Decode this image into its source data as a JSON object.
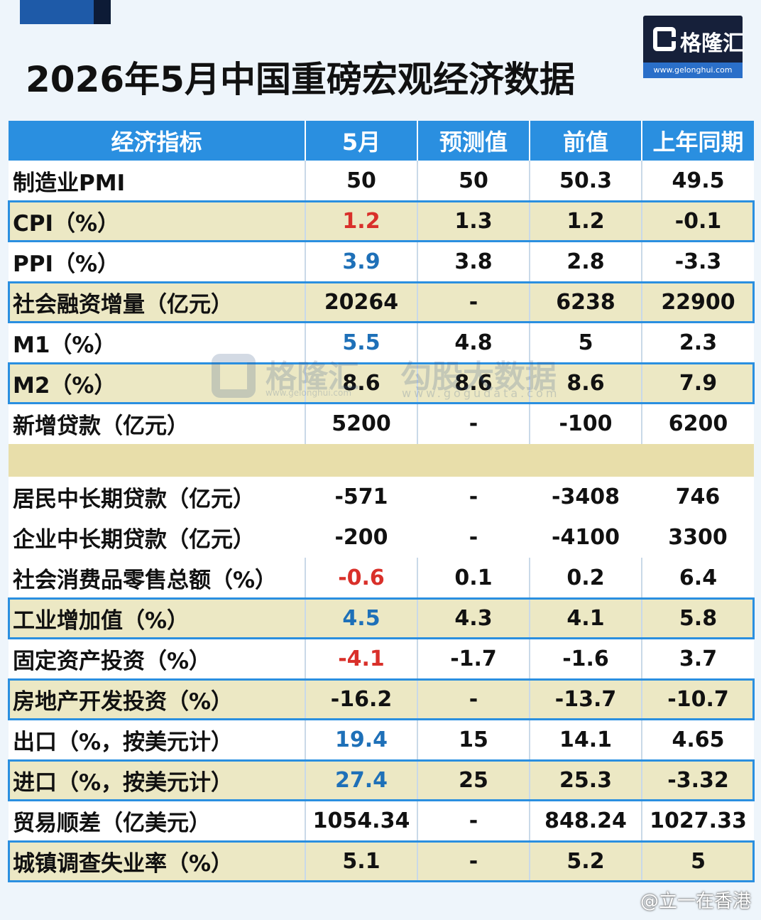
{
  "title": "2026年5月中国重磅宏观经济数据",
  "logo": {
    "name": "格隆汇",
    "url": "www.gelonghui.com"
  },
  "watermark": {
    "brand1": "格隆汇",
    "url1": "www.gelonghui.com",
    "brand2": "勾股大数据",
    "url2": "www.gogudata.com"
  },
  "table": {
    "headers": [
      "经济指标",
      "5月",
      "预测值",
      "前值",
      "上年同期"
    ],
    "rows": [
      {
        "label": "制造业PMI",
        "may": "50",
        "forecast": "50",
        "prev": "50.3",
        "last_year": "49.5",
        "style": "w",
        "may_color": ""
      },
      {
        "label": "CPI（%）",
        "may": "1.2",
        "forecast": "1.3",
        "prev": "1.2",
        "last_year": "-0.1",
        "style": "y",
        "may_color": "red"
      },
      {
        "label": "PPI（%）",
        "may": "3.9",
        "forecast": "3.8",
        "prev": "2.8",
        "last_year": "-3.3",
        "style": "w",
        "may_color": "blue"
      },
      {
        "label": "社会融资增量（亿元）",
        "may": "20264",
        "forecast": "-",
        "prev": "6238",
        "last_year": "22900",
        "style": "y",
        "may_color": ""
      },
      {
        "label": "M1（%）",
        "may": "5.5",
        "forecast": "4.8",
        "prev": "5",
        "last_year": "2.3",
        "style": "w",
        "may_color": "blue"
      },
      {
        "label": "M2（%）",
        "may": "8.6",
        "forecast": "8.6",
        "prev": "8.6",
        "last_year": "7.9",
        "style": "y",
        "may_color": ""
      },
      {
        "label": "新增贷款（亿元）",
        "may": "5200",
        "forecast": "-",
        "prev": "-100",
        "last_year": "6200",
        "style": "w",
        "may_color": ""
      },
      {
        "label": "",
        "may": "",
        "forecast": "",
        "prev": "",
        "last_year": "",
        "style": "spacer",
        "may_color": ""
      },
      {
        "label": "居民中长期贷款（亿元）",
        "may": "-571",
        "forecast": "-",
        "prev": "-3408",
        "last_year": "746",
        "style": "w nb",
        "may_color": ""
      },
      {
        "label": "企业中长期贷款（亿元）",
        "may": "-200",
        "forecast": "-",
        "prev": "-4100",
        "last_year": "3300",
        "style": "w nb",
        "may_color": ""
      },
      {
        "label": "社会消费品零售总额（%）",
        "may": "-0.6",
        "forecast": "0.1",
        "prev": "0.2",
        "last_year": "6.4",
        "style": "w",
        "may_color": "red"
      },
      {
        "label": "工业增加值（%）",
        "may": "4.5",
        "forecast": "4.3",
        "prev": "4.1",
        "last_year": "5.8",
        "style": "y",
        "may_color": "blue"
      },
      {
        "label": "固定资产投资（%）",
        "may": "-4.1",
        "forecast": "-1.7",
        "prev": "-1.6",
        "last_year": "3.7",
        "style": "w",
        "may_color": "red"
      },
      {
        "label": "房地产开发投资（%）",
        "may": "-16.2",
        "forecast": "-",
        "prev": "-13.7",
        "last_year": "-10.7",
        "style": "y",
        "may_color": ""
      },
      {
        "label": "出口（%，按美元计）",
        "may": "19.4",
        "forecast": "15",
        "prev": "14.1",
        "last_year": "4.65",
        "style": "w",
        "may_color": "blue"
      },
      {
        "label": "进口（%，按美元计）",
        "may": "27.4",
        "forecast": "25",
        "prev": "25.3",
        "last_year": "-3.32",
        "style": "y",
        "may_color": "blue"
      },
      {
        "label": "贸易顺差（亿美元）",
        "may": "1054.34",
        "forecast": "-",
        "prev": "848.24",
        "last_year": "1027.33",
        "style": "w",
        "may_color": ""
      },
      {
        "label": "城镇调查失业率（%）",
        "may": "5.1",
        "forecast": "-",
        "prev": "5.2",
        "last_year": "5",
        "style": "y",
        "may_color": ""
      }
    ]
  },
  "footer": {
    "weibo_handle": "@立一在香港"
  },
  "colors": {
    "header_blue": "#2a8fe0",
    "highlight_yellow": "#ece8c4",
    "red": "#d9302a",
    "blue": "#1e70b8"
  }
}
